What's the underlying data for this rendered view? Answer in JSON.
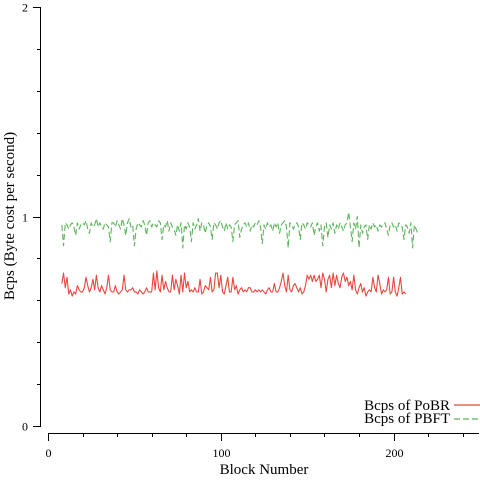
{
  "chart_data": {
    "type": "line",
    "title": "",
    "xlabel": "Block Number",
    "ylabel": "Bcps (Byte cost per second)",
    "xlim": [
      0,
      250
    ],
    "ylim": [
      0,
      2
    ],
    "x_major_ticks": [
      0,
      100,
      200
    ],
    "x_minor_ticks": [
      20,
      40,
      60,
      80,
      120,
      140,
      160,
      180,
      220,
      240
    ],
    "y_major_ticks": [
      0,
      1,
      2
    ],
    "y_minor_ticks": [
      0.2,
      0.4,
      0.6,
      0.8,
      1.2,
      1.4,
      1.6,
      1.8
    ],
    "legend_position": "bottom-right",
    "grid": false,
    "series": [
      {
        "name": "Bcps of PoBR",
        "color": "#e8473f",
        "dash": "solid",
        "x_start": 8,
        "x_step": 1,
        "values": [
          0.68,
          0.73,
          0.66,
          0.71,
          0.63,
          0.65,
          0.62,
          0.64,
          0.63,
          0.67,
          0.65,
          0.64,
          0.64,
          0.66,
          0.71,
          0.67,
          0.64,
          0.66,
          0.7,
          0.65,
          0.72,
          0.66,
          0.64,
          0.67,
          0.65,
          0.63,
          0.66,
          0.72,
          0.65,
          0.64,
          0.64,
          0.67,
          0.64,
          0.63,
          0.64,
          0.65,
          0.72,
          0.65,
          0.64,
          0.65,
          0.65,
          0.66,
          0.64,
          0.64,
          0.63,
          0.65,
          0.64,
          0.63,
          0.64,
          0.66,
          0.64,
          0.64,
          0.64,
          0.73,
          0.65,
          0.74,
          0.66,
          0.64,
          0.72,
          0.65,
          0.69,
          0.66,
          0.64,
          0.64,
          0.72,
          0.65,
          0.7,
          0.67,
          0.63,
          0.72,
          0.64,
          0.73,
          0.66,
          0.69,
          0.64,
          0.65,
          0.64,
          0.66,
          0.64,
          0.64,
          0.7,
          0.63,
          0.64,
          0.67,
          0.66,
          0.65,
          0.71,
          0.64,
          0.65,
          0.73,
          0.73,
          0.66,
          0.72,
          0.64,
          0.63,
          0.67,
          0.71,
          0.64,
          0.64,
          0.71,
          0.65,
          0.67,
          0.63,
          0.65,
          0.66,
          0.64,
          0.65,
          0.64,
          0.66,
          0.66,
          0.64,
          0.64,
          0.65,
          0.64,
          0.65,
          0.64,
          0.65,
          0.64,
          0.63,
          0.65,
          0.66,
          0.64,
          0.64,
          0.68,
          0.64,
          0.64,
          0.66,
          0.69,
          0.73,
          0.67,
          0.64,
          0.72,
          0.65,
          0.64,
          0.67,
          0.68,
          0.66,
          0.64,
          0.66,
          0.63,
          0.64,
          0.67,
          0.72,
          0.7,
          0.72,
          0.69,
          0.72,
          0.69,
          0.7,
          0.72,
          0.66,
          0.73,
          0.7,
          0.64,
          0.7,
          0.72,
          0.66,
          0.73,
          0.67,
          0.72,
          0.68,
          0.66,
          0.71,
          0.73,
          0.69,
          0.71,
          0.67,
          0.69,
          0.65,
          0.72,
          0.65,
          0.63,
          0.66,
          0.68,
          0.64,
          0.66,
          0.62,
          0.64,
          0.65,
          0.64,
          0.71,
          0.66,
          0.64,
          0.72,
          0.68,
          0.63,
          0.65,
          0.64,
          0.65,
          0.71,
          0.63,
          0.64,
          0.71,
          0.64,
          0.62,
          0.66,
          0.71,
          0.63,
          0.64,
          0.63
        ],
        "legend_label": "Bcps of PoBR"
      },
      {
        "name": "Bcps of PBFT",
        "color": "#5cb55c",
        "dash": "dashed",
        "x_start": 8,
        "x_step": 1,
        "values": [
          0.96,
          0.86,
          0.97,
          0.96,
          0.94,
          0.96,
          0.97,
          0.95,
          0.91,
          0.97,
          0.94,
          0.96,
          0.97,
          0.96,
          0.98,
          0.94,
          0.92,
          0.97,
          0.95,
          0.96,
          0.99,
          0.95,
          0.97,
          0.95,
          0.94,
          0.97,
          0.96,
          0.95,
          0.88,
          0.97,
          0.97,
          0.95,
          0.98,
          0.96,
          0.94,
          0.99,
          0.96,
          0.91,
          0.97,
          0.99,
          0.95,
          0.96,
          0.86,
          0.94,
          0.97,
          0.96,
          0.95,
          0.98,
          0.96,
          0.91,
          0.97,
          0.98,
          0.95,
          0.97,
          0.96,
          0.95,
          0.98,
          0.97,
          0.89,
          0.96,
          0.95,
          0.98,
          0.93,
          0.97,
          0.95,
          0.94,
          0.91,
          0.96,
          0.93,
          0.97,
          0.85,
          0.96,
          0.94,
          0.97,
          0.95,
          0.88,
          0.97,
          0.94,
          0.96,
          0.99,
          0.93,
          0.97,
          0.96,
          0.92,
          0.96,
          0.97,
          0.95,
          0.89,
          0.97,
          0.96,
          0.94,
          0.97,
          0.98,
          0.95,
          0.93,
          0.97,
          0.94,
          0.96,
          0.95,
          0.88,
          0.96,
          0.97,
          0.98,
          0.9,
          0.94,
          0.96,
          0.97,
          0.95,
          0.97,
          0.93,
          0.96,
          0.95,
          0.97,
          0.96,
          0.98,
          0.95,
          0.87,
          0.96,
          0.94,
          0.97,
          0.95,
          0.96,
          0.93,
          0.97,
          0.95,
          0.97,
          0.92,
          0.96,
          0.97,
          0.98,
          0.95,
          0.85,
          0.97,
          0.96,
          0.94,
          0.96,
          0.97,
          0.95,
          0.89,
          0.97,
          0.96,
          0.94,
          0.97,
          0.96,
          0.95,
          0.97,
          0.91,
          0.95,
          0.97,
          0.93,
          0.96,
          0.86,
          0.95,
          0.97,
          0.9,
          0.96,
          0.94,
          0.97,
          0.92,
          0.96,
          0.94,
          0.97,
          0.95,
          0.93,
          0.96,
          0.97,
          1.02,
          0.95,
          0.88,
          0.97,
          0.94,
          1.0,
          0.85,
          0.96,
          0.92,
          0.95,
          0.96,
          0.89,
          0.96,
          0.94,
          0.97,
          0.95,
          0.96,
          0.93,
          0.96,
          0.95,
          0.96,
          0.97,
          0.94,
          0.91,
          0.96,
          0.97,
          0.95,
          0.96,
          0.93,
          0.97,
          0.96,
          0.95,
          0.89,
          0.96,
          0.95,
          0.92,
          0.97,
          0.85,
          0.96,
          0.94,
          0.92
        ],
        "legend_label": "Bcps of PBFT"
      }
    ]
  }
}
